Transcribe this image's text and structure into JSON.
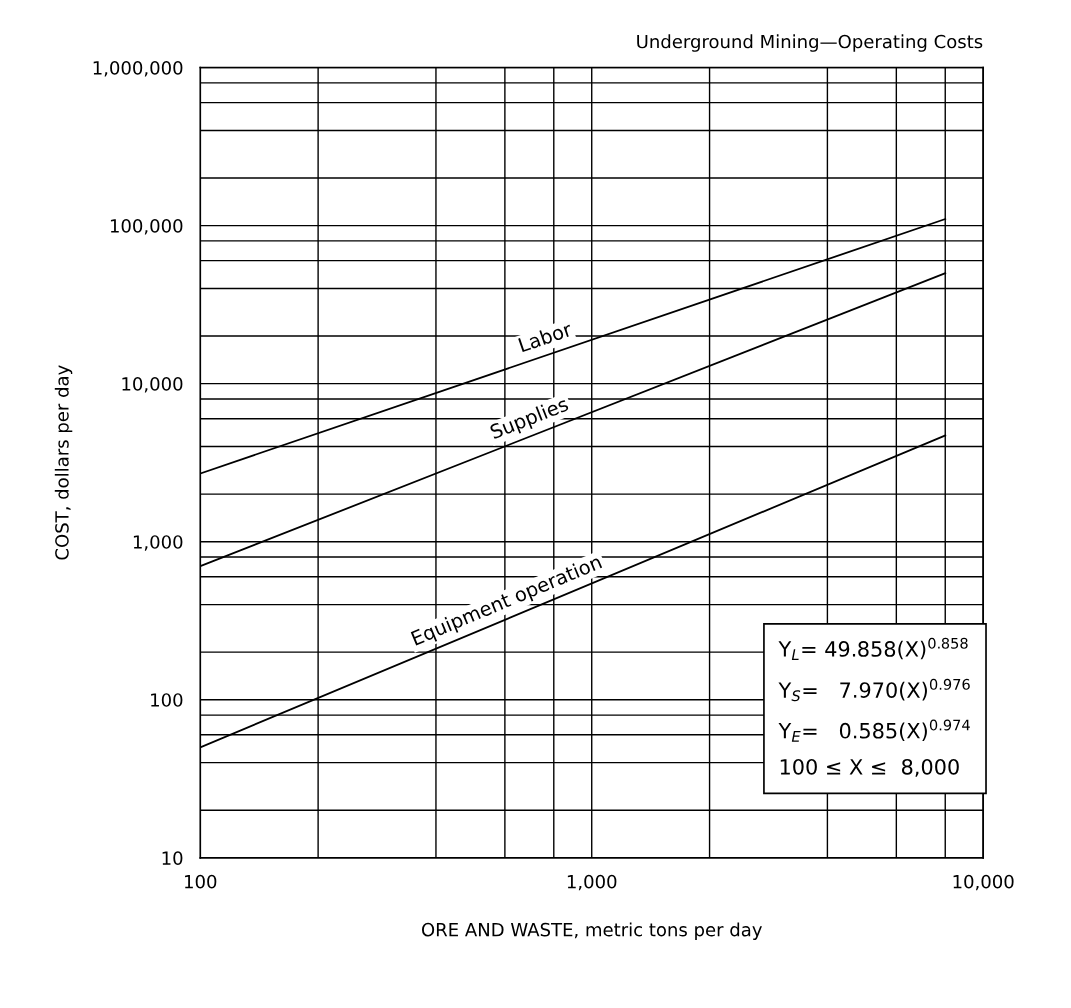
{
  "chart_data": {
    "type": "line",
    "title": "Underground Mining—Operating Costs",
    "xlabel": "ORE AND WASTE, metric tons per day",
    "ylabel": "COST, dollars per day",
    "log": "xy",
    "grid": true,
    "legend": false,
    "line_style": "solid",
    "marker": "none",
    "xlim": [
      100,
      10000
    ],
    "xticks": [
      {
        "value": 100,
        "label": "100"
      },
      {
        "value": 1000,
        "label": "1,000"
      },
      {
        "value": 10000,
        "label": "10,000"
      }
    ],
    "ylim": [
      10,
      1000000
    ],
    "yticks": [
      {
        "value": 10,
        "label": "10"
      },
      {
        "value": 100,
        "label": "100"
      },
      {
        "value": 1000,
        "label": "1,000"
      },
      {
        "value": 10000,
        "label": "10,000"
      },
      {
        "value": 100000,
        "label": "100,000"
      },
      {
        "value": 1000000,
        "label": "1,000,000"
      }
    ],
    "x": [
      100,
      8000
    ],
    "series": [
      {
        "name": "Labor",
        "color": "#000000",
        "values": [
          2700,
          110000
        ]
      },
      {
        "name": "Supplies",
        "color": "#000000",
        "values": [
          700,
          50000
        ]
      },
      {
        "name": "Equipment operation",
        "color": "#000000",
        "values": [
          50,
          4700
        ]
      }
    ],
    "annotations": [
      "Y$_{L}$= 49.858(X)$^{0.858}$",
      "Y$_{S}$=   7.970(X)$^{0.976}$",
      "Y$_{E}$=   0.585(X)$^{0.974}$",
      "100 ≤ X ≤  8,000"
    ]
  }
}
